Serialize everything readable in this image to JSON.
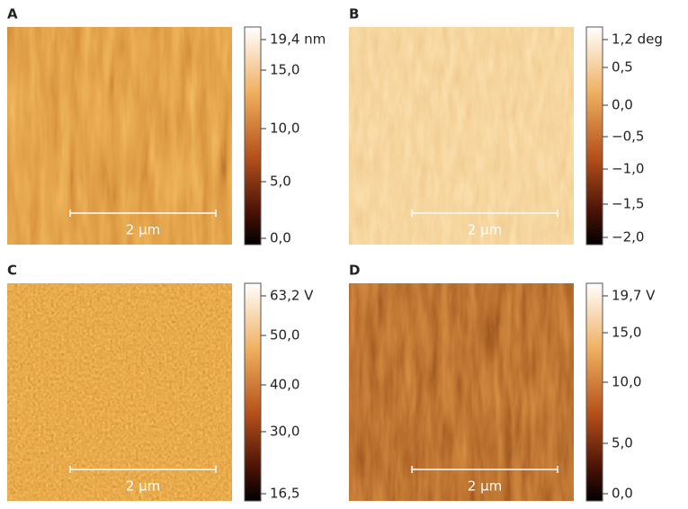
{
  "panels": [
    {
      "label": "A",
      "scale_bar": "2 µm",
      "colorbar": {
        "ticks": [
          "19,4 nm",
          "15,0",
          "10,0",
          "5,0",
          "0,0"
        ]
      }
    },
    {
      "label": "B",
      "scale_bar": "2 µm",
      "colorbar": {
        "ticks": [
          "1,2 deg",
          "0,5",
          "0,0",
          "−0,5",
          "−1,0",
          "−1,5",
          "−2,0"
        ]
      }
    },
    {
      "label": "C",
      "scale_bar": "2 µm",
      "colorbar": {
        "ticks": [
          "63,2 V",
          "50,0",
          "40,0",
          "30,0",
          "16,5"
        ]
      }
    },
    {
      "label": "D",
      "scale_bar": "2 µm",
      "colorbar": {
        "ticks": [
          "19,7 V",
          "15,0",
          "10,0",
          "5,0",
          "0,0"
        ]
      }
    }
  ]
}
